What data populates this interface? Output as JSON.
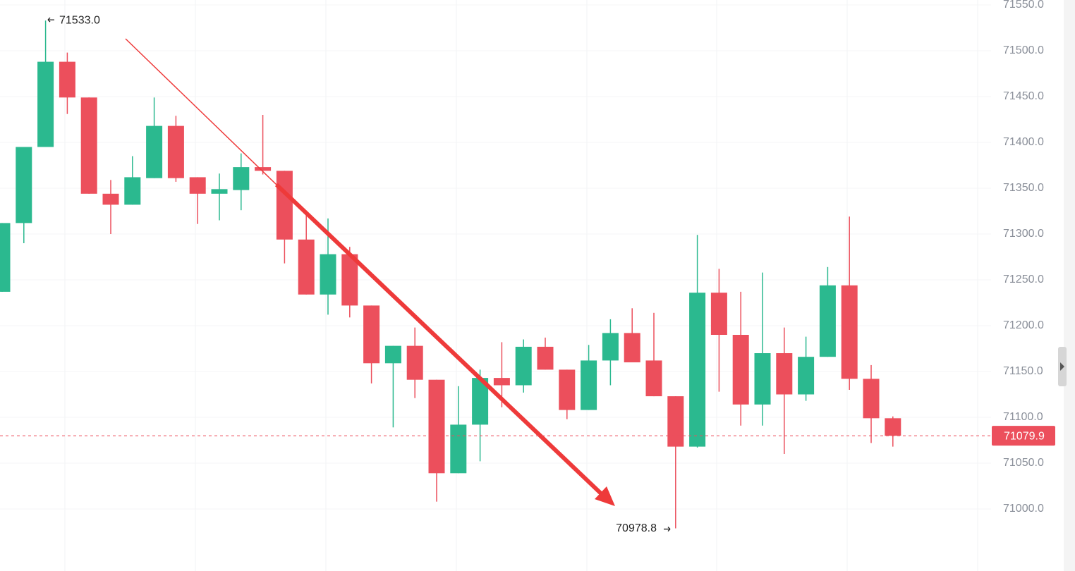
{
  "chart_data": {
    "type": "candlestick",
    "categories": [
      null,
      null,
      null,
      null,
      null,
      null,
      null,
      null,
      null,
      null,
      null,
      null,
      null,
      null,
      null,
      null,
      null,
      null,
      null,
      null,
      null,
      null,
      null,
      null,
      null,
      null,
      null,
      null,
      null,
      null,
      null,
      null,
      null,
      null,
      null,
      null,
      null,
      null,
      null,
      null,
      null,
      null
    ],
    "open": [
      71237,
      71312,
      71395,
      71488,
      71449,
      71344,
      71332,
      71361,
      71418,
      71362,
      71344,
      71348,
      71373,
      71369,
      71294,
      71234,
      71278,
      71222,
      71159,
      71178,
      71141,
      71039,
      71092,
      71143,
      71135,
      71177,
      71152,
      71108,
      71162,
      71192,
      71162,
      71123,
      71068,
      71236,
      71190,
      71114,
      71170,
      71125,
      71166,
      71244,
      71142,
      71099
    ],
    "high": [
      71312,
      71395,
      71533,
      71498,
      71449,
      71359,
      71385,
      71449,
      71429,
      71362,
      71366,
      71388,
      71430,
      71369,
      71325,
      71317,
      71286,
      71222,
      71178,
      71198,
      71141,
      71134,
      71152,
      71182,
      71185,
      71187,
      71152,
      71179,
      71207,
      71219,
      71214,
      71123,
      71299,
      71262,
      71237,
      71258,
      71198,
      71188,
      71264,
      71319,
      71157,
      71101
    ],
    "low": [
      71237,
      71290,
      71395,
      71431,
      71344,
      71300,
      71332,
      71361,
      71357,
      71311,
      71315,
      71326,
      71365,
      71268,
      71234,
      71212,
      71209,
      71137,
      71089,
      71121,
      71008,
      71039,
      71052,
      71111,
      71127,
      71152,
      71098,
      71108,
      71135,
      71160,
      71123,
      70978.8,
      71067,
      71128,
      71091,
      71091,
      71060,
      71118,
      71166,
      71130,
      71072,
      71068
    ],
    "close": [
      71312,
      71395,
      71488,
      71449,
      71344,
      71332,
      71362,
      71418,
      71361,
      71344,
      71349,
      71373,
      71369,
      71294,
      71234,
      71278,
      71222,
      71159,
      71178,
      71141,
      71039,
      71092,
      71143,
      71135,
      71177,
      71152,
      71108,
      71162,
      71192,
      71160,
      71123,
      71068,
      71236,
      71190,
      71114,
      71170,
      71125,
      71166,
      71244,
      71142,
      71099,
      71079.9
    ],
    "up_color": "#2bb98f",
    "down_color": "#ec4f5c",
    "ylim": [
      70940,
      71555
    ],
    "yticks": [
      {
        "value": 71000,
        "label": "71000.0"
      },
      {
        "value": 71050,
        "label": "71050.0"
      },
      {
        "value": 71100,
        "label": "71100.0"
      },
      {
        "value": 71150,
        "label": "71150.0"
      },
      {
        "value": 71200,
        "label": "71200.0"
      },
      {
        "value": 71250,
        "label": "71250.0"
      },
      {
        "value": 71300,
        "label": "71300.0"
      },
      {
        "value": 71350,
        "label": "71350.0"
      },
      {
        "value": 71400,
        "label": "71400.0"
      },
      {
        "value": 71450,
        "label": "71450.0"
      },
      {
        "value": 71500,
        "label": "71500.0"
      },
      {
        "value": 71550,
        "label": "71550.0"
      }
    ],
    "grid": true,
    "last_price": {
      "value": 71079.9,
      "label": "71079.9"
    },
    "annotations": [
      {
        "value": 71533,
        "label": "71533.0"
      },
      {
        "value": 70978.8,
        "label": "70978.8"
      }
    ]
  }
}
